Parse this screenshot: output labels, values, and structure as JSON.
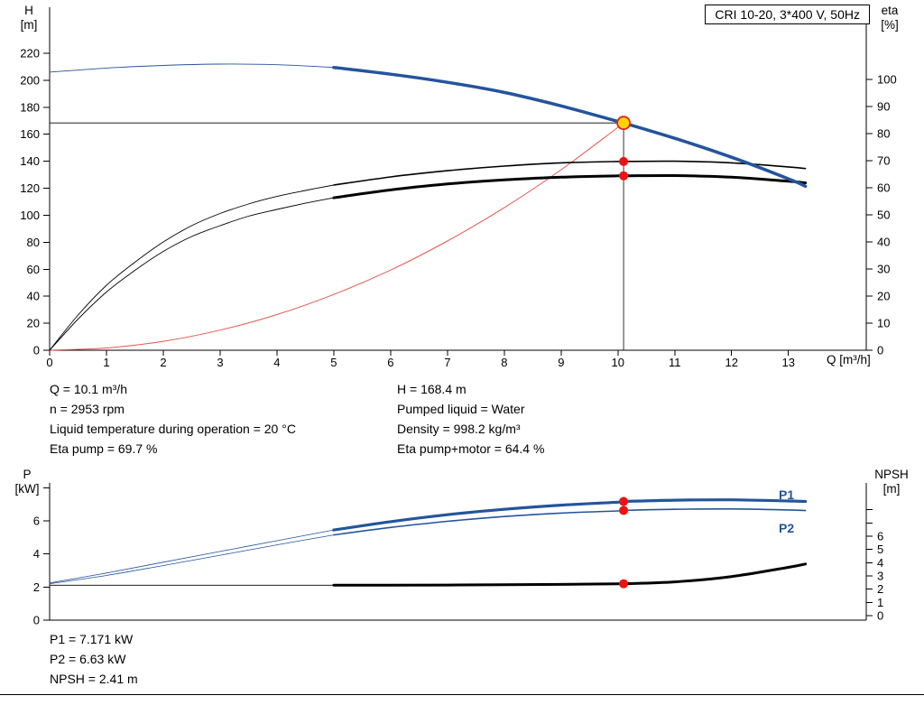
{
  "colors": {
    "blue": "#24549c",
    "black": "#000000",
    "red_curve": "#e4574f",
    "dot_red": "#ee1111",
    "duty_fill": "#ffd400",
    "duty_stroke": "#e02020"
  },
  "header": {
    "title_box": "CRI 10-20, 3*400 V, 50Hz"
  },
  "info_top": {
    "left": [
      "Q = 10.1 m³/h",
      "n = 2953 rpm",
      "Liquid temperature during operation = 20 °C",
      "Eta pump = 69.7 %"
    ],
    "right": [
      "H = 168.4 m",
      "Pumped liquid = Water",
      "Density = 998.2 kg/m³",
      "Eta pump+motor = 64.4 %"
    ]
  },
  "info_bottom": [
    "P1 = 7.171 kW",
    "P2 = 6.63 kW",
    "NPSH = 2.41 m"
  ],
  "chart_data": [
    {
      "type": "line",
      "x": {
        "label": "Q [m³/h]",
        "min": 0,
        "max": 14.37,
        "ticks": [
          0,
          1,
          2,
          3,
          4,
          5,
          6,
          7,
          8,
          9,
          10,
          11,
          12,
          13
        ]
      },
      "y_left": {
        "label_lines": [
          "H",
          "[m]"
        ],
        "min": 0,
        "max": 220,
        "ticks": [
          0,
          20,
          40,
          60,
          80,
          100,
          120,
          140,
          160,
          180,
          200,
          220
        ]
      },
      "y_right": {
        "label_lines": [
          "eta",
          "[%]"
        ],
        "min": 0,
        "max": 100,
        "ticks": [
          0,
          10,
          20,
          30,
          40,
          50,
          60,
          70,
          80,
          90,
          100
        ]
      },
      "series": [
        {
          "name": "system-curve",
          "axis": "left",
          "color": "red_curve",
          "width": 1,
          "points": [
            [
              0,
              0
            ],
            [
              1,
              1.7
            ],
            [
              2,
              6.6
            ],
            [
              3,
              14.9
            ],
            [
              4,
              26.4
            ],
            [
              5,
              41.3
            ],
            [
              6,
              59.4
            ],
            [
              7,
              80.9
            ],
            [
              8,
              105.6
            ],
            [
              9,
              133.7
            ],
            [
              10,
              165.1
            ],
            [
              10.1,
              168.4
            ]
          ]
        },
        {
          "name": "eta-pump-motor-thin",
          "axis": "right",
          "color": "black",
          "width": 0.9,
          "points": [
            [
              0,
              0
            ],
            [
              0.5,
              11.5
            ],
            [
              1,
              21.5
            ],
            [
              1.5,
              29.5
            ],
            [
              2,
              36.5
            ],
            [
              2.5,
              42
            ],
            [
              3,
              46
            ],
            [
              3.5,
              49.5
            ],
            [
              4,
              52
            ],
            [
              4.5,
              54.3
            ],
            [
              5,
              56.3
            ]
          ]
        },
        {
          "name": "eta-pump-thin",
          "axis": "right",
          "color": "black",
          "width": 0.9,
          "points": [
            [
              0,
              0
            ],
            [
              0.5,
              13
            ],
            [
              1,
              24
            ],
            [
              1.5,
              32.5
            ],
            [
              2,
              40
            ],
            [
              2.5,
              46
            ],
            [
              3,
              50.5
            ],
            [
              3.5,
              54
            ],
            [
              4,
              56.8
            ],
            [
              4.5,
              59
            ],
            [
              5,
              61
            ]
          ]
        },
        {
          "name": "eta-pump-motor",
          "axis": "right",
          "color": "black",
          "width": 3,
          "points": [
            [
              5,
              56.3
            ],
            [
              6,
              59.2
            ],
            [
              7,
              61.4
            ],
            [
              8,
              62.9
            ],
            [
              9,
              63.9
            ],
            [
              10,
              64.4
            ],
            [
              10.1,
              64.4
            ],
            [
              11,
              64.5
            ],
            [
              12,
              63.9
            ],
            [
              13,
              62.4
            ],
            [
              13.3,
              61.8
            ]
          ]
        },
        {
          "name": "eta-pump",
          "axis": "right",
          "color": "black",
          "width": 1.6,
          "points": [
            [
              5,
              61
            ],
            [
              6,
              64
            ],
            [
              7,
              66.3
            ],
            [
              8,
              68
            ],
            [
              9,
              69.2
            ],
            [
              10,
              69.7
            ],
            [
              10.1,
              69.7
            ],
            [
              11,
              69.8
            ],
            [
              12,
              69.2
            ],
            [
              13,
              67.7
            ],
            [
              13.3,
              67.1
            ]
          ]
        },
        {
          "name": "head-thin",
          "axis": "left",
          "color": "blue",
          "width": 0.9,
          "points": [
            [
              0,
              206
            ],
            [
              1,
              209
            ],
            [
              2,
              211
            ],
            [
              3,
              212
            ],
            [
              4,
              211.5
            ],
            [
              5,
              209.5
            ]
          ]
        },
        {
          "name": "head",
          "axis": "left",
          "color": "blue",
          "width": 3.5,
          "points": [
            [
              5,
              209.5
            ],
            [
              6,
              204.5
            ],
            [
              7,
              198.5
            ],
            [
              8,
              191
            ],
            [
              9,
              181
            ],
            [
              10,
              169.5
            ],
            [
              10.1,
              168.4
            ],
            [
              11,
              157
            ],
            [
              12,
              143
            ],
            [
              13,
              127
            ],
            [
              13.3,
              121.5
            ]
          ]
        }
      ],
      "guides": [
        {
          "type": "h",
          "axis": "left",
          "value": 168.4,
          "x_from": 0,
          "x_to": 10.1
        },
        {
          "type": "v",
          "axis": "left",
          "x": 10.1,
          "v_from": 0,
          "v_to": 168.4
        }
      ],
      "markers": [
        {
          "x": 10.1,
          "value": 168.4,
          "axis": "left",
          "style": "duty",
          "name": "duty-point"
        },
        {
          "x": 10.1,
          "value": 69.7,
          "axis": "right",
          "style": "dot",
          "name": "eta-pump-point"
        },
        {
          "x": 10.1,
          "value": 64.4,
          "axis": "right",
          "style": "dot",
          "name": "eta-pump-motor-point"
        }
      ]
    },
    {
      "type": "line",
      "x": {
        "label": "",
        "min": 0,
        "max": 14.37,
        "ticks": []
      },
      "y_left": {
        "label_lines": [
          "P",
          "[kW]"
        ],
        "min": 0,
        "max": 6,
        "ticks": [
          0,
          2,
          4,
          6
        ],
        "minor_ticks": [
          8
        ]
      },
      "y_right": {
        "label_lines": [
          "NPSH",
          "[m]"
        ],
        "min": 0,
        "max": 6,
        "ticks": [
          0,
          1,
          2,
          3,
          4,
          5,
          6
        ],
        "minor_ticks": [
          7,
          8
        ]
      },
      "series_labels": {
        "p1": "P1",
        "p2": "P2"
      },
      "series": [
        {
          "name": "p2-thin",
          "axis": "left",
          "color": "blue",
          "width": 0.8,
          "points": [
            [
              0,
              2.2
            ],
            [
              1,
              2.7
            ],
            [
              2,
              3.3
            ],
            [
              3,
              3.92
            ],
            [
              4,
              4.55
            ],
            [
              5,
              5.15
            ]
          ]
        },
        {
          "name": "p1-thin",
          "axis": "left",
          "color": "blue",
          "width": 0.8,
          "points": [
            [
              0,
              2.25
            ],
            [
              1,
              2.85
            ],
            [
              2,
              3.5
            ],
            [
              3,
              4.15
            ],
            [
              4,
              4.8
            ],
            [
              5,
              5.45
            ]
          ]
        },
        {
          "name": "npsh-thin",
          "axis": "right",
          "color": "black",
          "width": 0.8,
          "points": [
            [
              0,
              2.3
            ],
            [
              2.5,
              2.3
            ],
            [
              5,
              2.3
            ]
          ]
        },
        {
          "name": "p2",
          "axis": "left",
          "color": "blue",
          "width": 1.6,
          "points": [
            [
              5,
              5.15
            ],
            [
              6,
              5.6
            ],
            [
              7,
              5.97
            ],
            [
              8,
              6.26
            ],
            [
              9,
              6.47
            ],
            [
              10,
              6.6
            ],
            [
              10.1,
              6.63
            ],
            [
              11,
              6.7
            ],
            [
              12,
              6.72
            ],
            [
              13,
              6.66
            ],
            [
              13.3,
              6.62
            ]
          ]
        },
        {
          "name": "p1",
          "axis": "left",
          "color": "blue",
          "width": 3.2,
          "points": [
            [
              5,
              5.45
            ],
            [
              6,
              5.95
            ],
            [
              7,
              6.37
            ],
            [
              8,
              6.7
            ],
            [
              9,
              6.95
            ],
            [
              10,
              7.13
            ],
            [
              10.1,
              7.171
            ],
            [
              11,
              7.25
            ],
            [
              12,
              7.27
            ],
            [
              13,
              7.2
            ],
            [
              13.3,
              7.17
            ]
          ]
        },
        {
          "name": "npsh",
          "axis": "right",
          "color": "black",
          "width": 3,
          "points": [
            [
              5,
              2.3
            ],
            [
              6,
              2.3
            ],
            [
              7,
              2.31
            ],
            [
              8,
              2.33
            ],
            [
              9,
              2.36
            ],
            [
              10,
              2.4
            ],
            [
              10.1,
              2.41
            ],
            [
              11,
              2.55
            ],
            [
              12,
              2.95
            ],
            [
              13,
              3.65
            ],
            [
              13.3,
              3.9
            ]
          ]
        }
      ],
      "guides": [],
      "markers": [
        {
          "x": 10.1,
          "value": 7.171,
          "axis": "left",
          "style": "dot",
          "name": "p1-point"
        },
        {
          "x": 10.1,
          "value": 6.63,
          "axis": "left",
          "style": "dot",
          "name": "p2-point"
        },
        {
          "x": 10.1,
          "value": 2.41,
          "axis": "right",
          "style": "dot",
          "name": "npsh-point"
        }
      ]
    }
  ]
}
